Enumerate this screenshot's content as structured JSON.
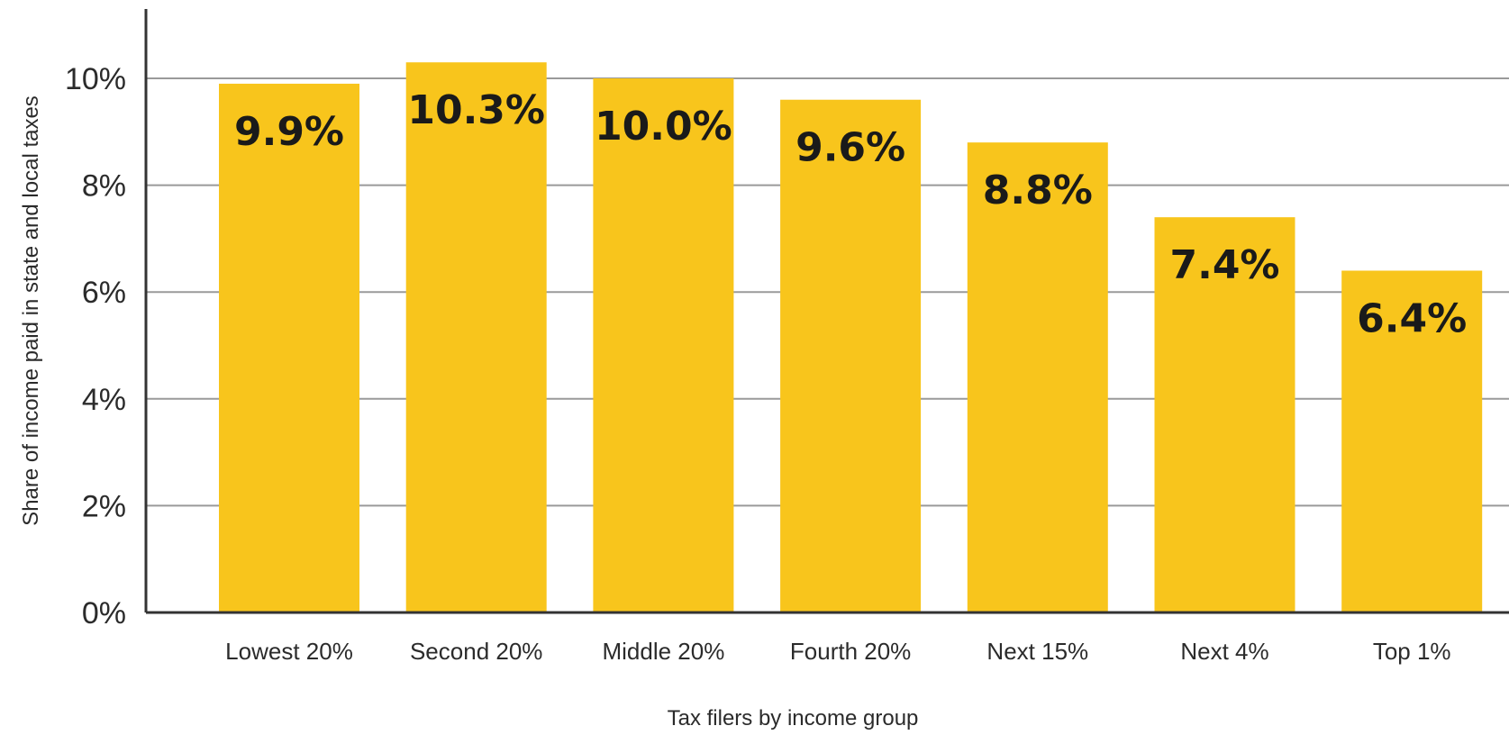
{
  "chart_data": {
    "type": "bar",
    "title": "",
    "xlabel": "Tax filers by income group",
    "ylabel": "Share of income paid in state and local taxes",
    "categories": [
      "Lowest 20%",
      "Second 20%",
      "Middle 20%",
      "Fourth 20%",
      "Next 15%",
      "Next 4%",
      "Top 1%"
    ],
    "values": [
      9.9,
      10.3,
      10.0,
      9.6,
      8.8,
      7.4,
      6.4
    ],
    "value_labels": [
      "9.9%",
      "10.3%",
      "10.0%",
      "9.6%",
      "8.8%",
      "7.4%",
      "6.4%"
    ],
    "ylim": [
      0,
      10
    ],
    "yticks": [
      0,
      2,
      4,
      6,
      8,
      10
    ],
    "ytick_labels": [
      "0%",
      "2%",
      "4%",
      "6%",
      "8%",
      "10%"
    ],
    "grid": true,
    "legend": "none",
    "colors": {
      "bar": "#F8C51C",
      "grid": "#9a9a9a",
      "axis": "#333333",
      "text": "#2b2b2b"
    }
  }
}
